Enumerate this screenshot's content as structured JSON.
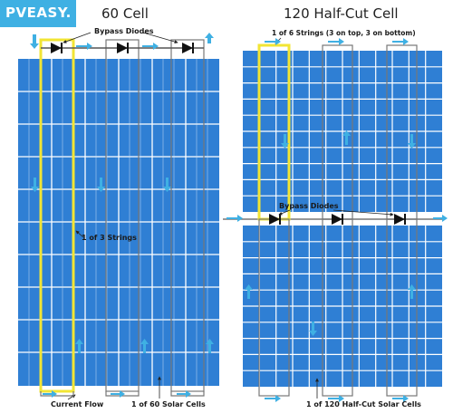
{
  "logo": {
    "text": "PVEASY."
  },
  "panels": {
    "left_title": "60 Cell",
    "right_title": "120 Half-Cut Cell"
  },
  "labels": {
    "bypass_left": "Bypass Diodes",
    "bypass_right": "Bypass Diodes",
    "strings_left": "1 of 3 Strings",
    "strings_right": "1 of 6 Strings (3 on top, 3 on bottom)",
    "current_flow": "Current Flow",
    "cells_left": "1 of 60 Solar Cells",
    "cells_right": "1 of 120 Half-Cut Solar Cells"
  },
  "colors": {
    "cell_blue": "#2f7fd4",
    "grid_line": "#ffffff",
    "arrow_blue": "#3fb0e3",
    "highlight_yellow": "#f2e534",
    "wire_gray": "#777777",
    "logo_bg": "#3fb0e3"
  }
}
